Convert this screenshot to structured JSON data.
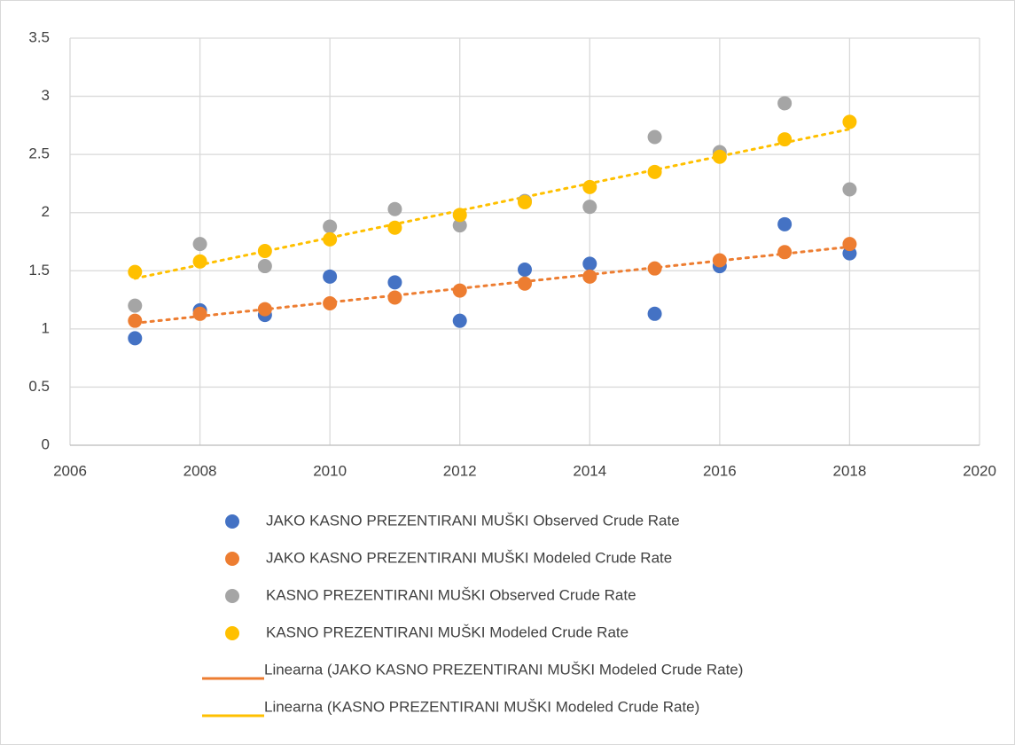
{
  "chart_data": {
    "type": "scatter",
    "x": [
      2007,
      2008,
      2009,
      2010,
      2011,
      2012,
      2013,
      2014,
      2015,
      2016,
      2017,
      2018
    ],
    "xlim": [
      2006,
      2020
    ],
    "xticks": [
      2006,
      2008,
      2010,
      2012,
      2014,
      2016,
      2018,
      2020
    ],
    "ylim": [
      0,
      3.5
    ],
    "yticks": [
      0,
      0.5,
      1,
      1.5,
      2,
      2.5,
      3,
      3.5
    ],
    "grid": true,
    "legend": "bottom",
    "series": [
      {
        "name": "JAKO KASNO PREZENTIRANI MUŠKI Observed Crude Rate",
        "color": "#4472c4",
        "values": [
          0.92,
          1.16,
          1.12,
          1.45,
          1.4,
          1.07,
          1.51,
          1.56,
          1.13,
          1.54,
          1.9,
          1.65
        ]
      },
      {
        "name": "JAKO KASNO PREZENTIRANI MUŠKI Modeled Crude Rate",
        "color": "#ed7d31",
        "values": [
          1.07,
          1.13,
          1.17,
          1.22,
          1.27,
          1.33,
          1.39,
          1.45,
          1.52,
          1.59,
          1.66,
          1.73
        ],
        "trendline": {
          "name": "Linearna (JAKO KASNO PREZENTIRANI MUŠKI Modeled Crude Rate)",
          "color": "#ed7d31"
        }
      },
      {
        "name": "KASNO PREZENTIRANI MUŠKI Observed Crude Rate",
        "color": "#a5a5a5",
        "values": [
          1.2,
          1.73,
          1.54,
          1.88,
          2.03,
          1.89,
          2.1,
          2.05,
          2.65,
          2.52,
          2.94,
          2.2
        ]
      },
      {
        "name": "KASNO PREZENTIRANI MUŠKI Modeled Crude Rate",
        "color": "#ffc000",
        "values": [
          1.49,
          1.58,
          1.67,
          1.77,
          1.87,
          1.98,
          2.09,
          2.22,
          2.35,
          2.48,
          2.63,
          2.78
        ],
        "trendline": {
          "name": "Linearna (KASNO PREZENTIRANI MUŠKI Modeled Crude Rate)",
          "color": "#ffc000"
        }
      }
    ]
  }
}
